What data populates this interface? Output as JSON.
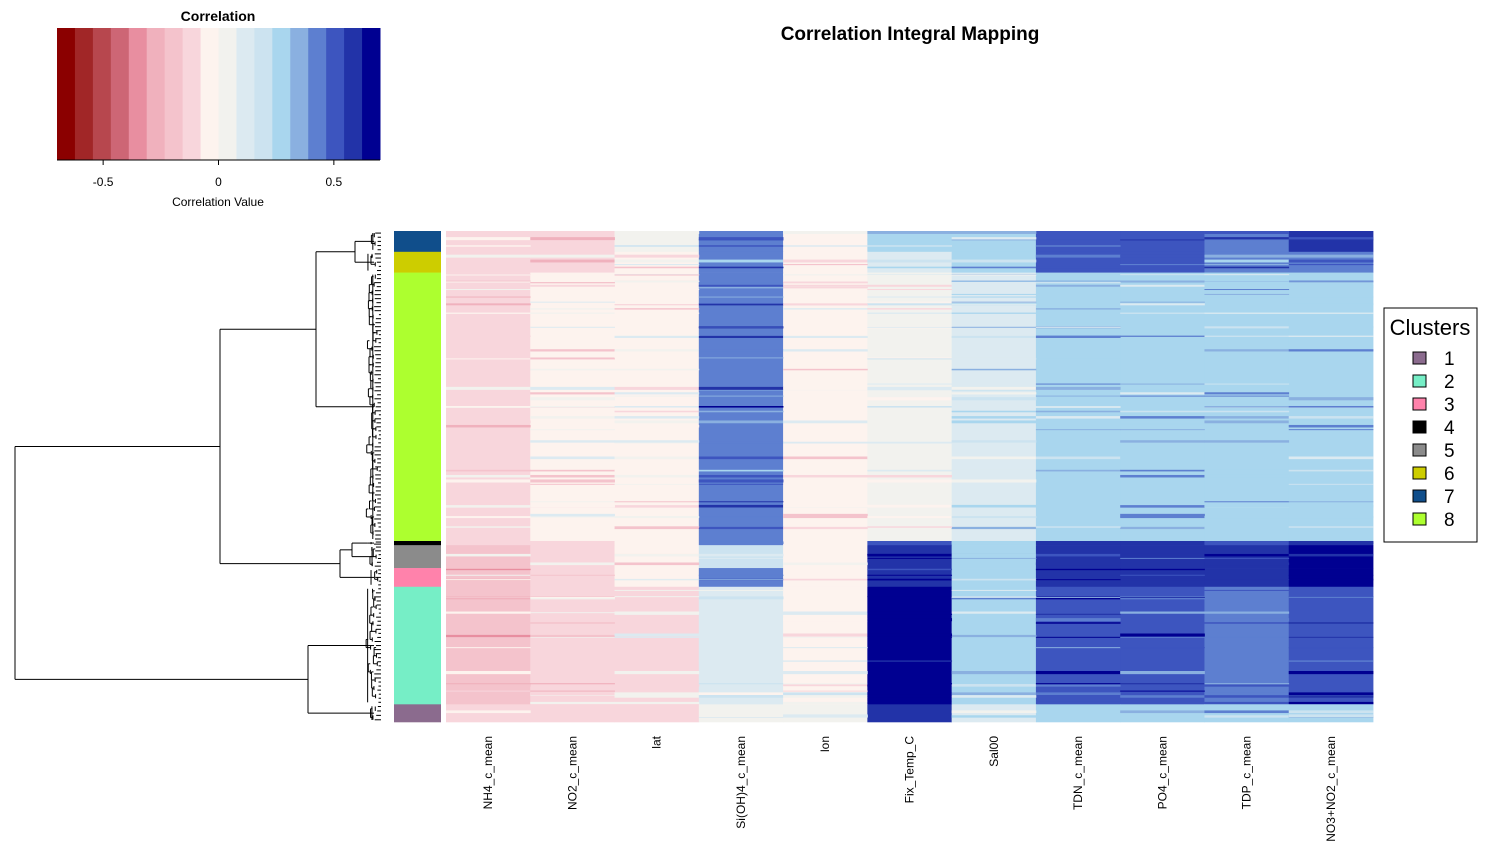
{
  "chart_data": {
    "type": "heatmap",
    "title": "Correlation Integral Mapping",
    "colorbar": {
      "title": "Correlation",
      "xlabel": "Correlation Value",
      "range": [
        -0.7,
        0.7
      ],
      "ticks": [
        -0.5,
        0,
        0.5
      ],
      "tick_labels": [
        "-0.5",
        "0",
        "0.5"
      ],
      "colors": [
        "#8b0000",
        "#a12627",
        "#b7474e",
        "#cd6675",
        "#e88ea0",
        "#f0b1bd",
        "#f4c3cc",
        "#f8d6dc",
        "#fdf3ee",
        "#f2f2ee",
        "#dceaf1",
        "#cce3f0",
        "#a9d6ee",
        "#8ab0e0",
        "#5d7fd0",
        "#3d55bf",
        "#2233a8",
        "#000091"
      ]
    },
    "columns": [
      "NH4_c_mean",
      "NO2_c_mean",
      "lat",
      "Si(OH)4_c_mean",
      "lon",
      "Fix_Temp_C",
      "Sal00",
      "TDN_c_mean",
      "PO4_c_mean",
      "TDP_c_mean",
      "NO3+NO2_c_mean"
    ],
    "row_cluster_segments": [
      {
        "cluster": "7",
        "rows": 20
      },
      {
        "cluster": "6",
        "rows": 20
      },
      {
        "cluster": "8",
        "rows": 258
      },
      {
        "cluster": "4",
        "rows": 4
      },
      {
        "cluster": "5",
        "rows": 22
      },
      {
        "cluster": "3",
        "rows": 18
      },
      {
        "cluster": "2",
        "rows": 113
      },
      {
        "cluster": "1",
        "rows": 17
      }
    ],
    "cluster_correlations": [
      {
        "cluster": "7",
        "values": [
          -0.15,
          -0.12,
          0.0,
          0.45,
          -0.04,
          0.25,
          0.25,
          0.5,
          0.5,
          0.45,
          0.62
        ]
      },
      {
        "cluster": "6",
        "values": [
          -0.15,
          -0.12,
          -0.05,
          0.45,
          -0.04,
          0.12,
          0.25,
          0.48,
          0.48,
          0.42,
          0.45
        ]
      },
      {
        "cluster": "8",
        "values": [
          -0.12,
          -0.06,
          -0.05,
          0.45,
          -0.04,
          0.02,
          0.15,
          0.25,
          0.25,
          0.25,
          0.25
        ]
      },
      {
        "cluster": "4",
        "values": [
          -0.15,
          -0.1,
          -0.05,
          0.4,
          -0.04,
          0.5,
          0.25,
          0.55,
          0.55,
          0.5,
          0.6
        ]
      },
      {
        "cluster": "5",
        "values": [
          -0.18,
          -0.12,
          -0.06,
          0.2,
          -0.04,
          0.6,
          0.25,
          0.58,
          0.58,
          0.55,
          0.65
        ]
      },
      {
        "cluster": "3",
        "values": [
          -0.18,
          -0.12,
          -0.06,
          0.45,
          -0.04,
          0.6,
          0.25,
          0.58,
          0.58,
          0.55,
          0.65
        ]
      },
      {
        "cluster": "2",
        "values": [
          -0.2,
          -0.12,
          -0.08,
          0.08,
          -0.02,
          0.72,
          0.25,
          0.5,
          0.5,
          0.45,
          0.5
        ]
      },
      {
        "cluster": "1",
        "values": [
          -0.15,
          -0.08,
          -0.1,
          0.03,
          0.0,
          0.6,
          0.12,
          0.3,
          0.3,
          0.3,
          0.3
        ]
      }
    ],
    "legend": {
      "title": "Clusters",
      "placement": "right",
      "items": [
        {
          "label": "1",
          "color": "#8b6b8e"
        },
        {
          "label": "2",
          "color": "#76eec6"
        },
        {
          "label": "3",
          "color": "#ff82ab"
        },
        {
          "label": "4",
          "color": "#000000"
        },
        {
          "label": "5",
          "color": "#8b8b8b"
        },
        {
          "label": "6",
          "color": "#cdcd00"
        },
        {
          "label": "7",
          "color": "#104e8b"
        },
        {
          "label": "8",
          "color": "#adff2f"
        }
      ]
    }
  }
}
